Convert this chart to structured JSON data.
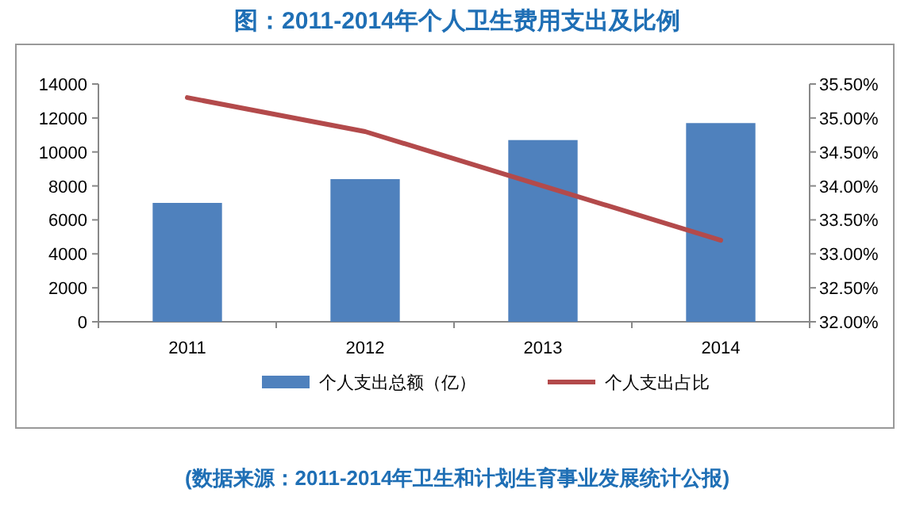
{
  "chart_data": {
    "type": "bar",
    "title": "图：2011-2014年个人卫生费用支出及比例",
    "categories": [
      "2011",
      "2012",
      "2013",
      "2014"
    ],
    "series": [
      {
        "name": "个人支出总额（亿）",
        "color": "#4f81bd",
        "values": [
          7000,
          8400,
          10700,
          11700
        ]
      },
      {
        "name": "个人支出占比",
        "type": "line",
        "axis": "y2",
        "color": "#b34a4b",
        "values": [
          35.3,
          34.8,
          34.0,
          33.2
        ]
      }
    ],
    "ylim": [
      0,
      14000
    ],
    "yticks": [
      0,
      2000,
      4000,
      6000,
      8000,
      10000,
      12000,
      14000
    ],
    "y2lim": [
      32,
      35.5
    ],
    "y2ticks": [
      {
        "value": 32,
        "label": "32.00%"
      },
      {
        "value": 32.5,
        "label": "32.50%"
      },
      {
        "value": 33,
        "label": "33.00%"
      },
      {
        "value": 33.5,
        "label": "33.50%"
      },
      {
        "value": 34,
        "label": "34.00%"
      },
      {
        "value": 34.5,
        "label": "34.50%"
      },
      {
        "value": 35,
        "label": "35.00%"
      },
      {
        "value": 35.5,
        "label": "35.50%"
      }
    ],
    "legend": "bottom",
    "grid": false,
    "marker": "none",
    "line_style": "solid",
    "annotations": [
      "(数据来源：2011-2014年卫生和计划生育事业发展统计公报)"
    ]
  }
}
